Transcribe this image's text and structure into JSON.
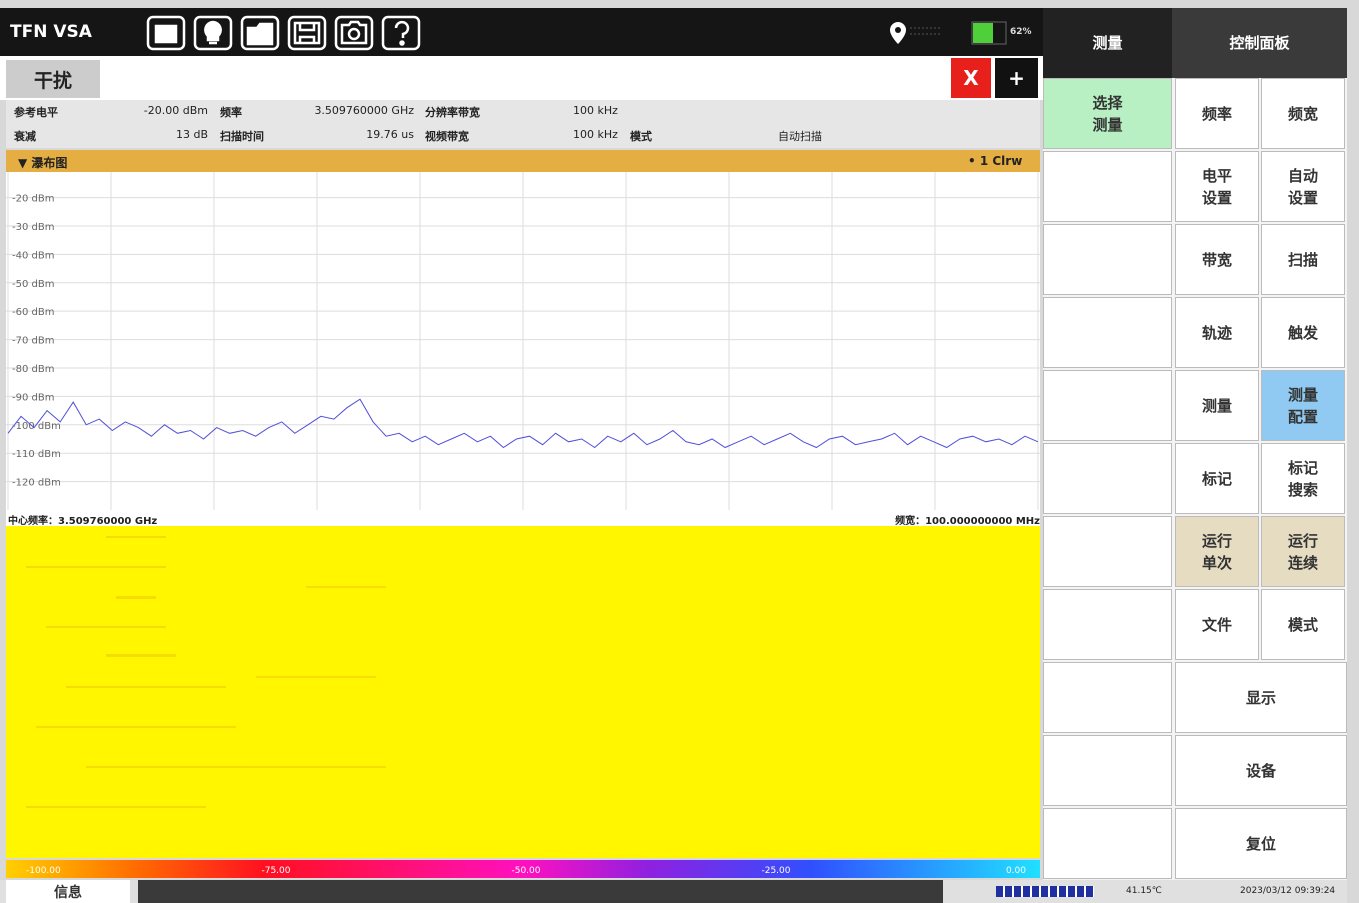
{
  "header": {
    "app_title": "TFN VSA",
    "battery": "62%"
  },
  "tab": {
    "label": "干扰",
    "close": "X",
    "add": "+"
  },
  "params": [
    [
      {
        "label": "参考电平",
        "value": "-20.00 dBm"
      },
      {
        "label": "频率",
        "value": "3.509760000 GHz"
      },
      {
        "label": "分辨率带宽",
        "value": "100 kHz"
      }
    ],
    [
      {
        "label": "衰减",
        "value": "13 dB"
      },
      {
        "label": "扫描时间",
        "value": "19.76 us"
      },
      {
        "label": "视频带宽",
        "value": "100 kHz"
      },
      {
        "label": "模式",
        "value": "自动扫描"
      }
    ]
  ],
  "panel": {
    "title": "▼ 瀑布图",
    "trace": "• 1 Clrw"
  },
  "spectrum": {
    "ylim": [
      -130,
      -11
    ],
    "yticks": [
      {
        "value": -20,
        "label": "-20 dBm"
      },
      {
        "value": -30,
        "label": "-30 dBm"
      },
      {
        "value": -40,
        "label": "-40 dBm"
      },
      {
        "value": -50,
        "label": "-50 dBm"
      },
      {
        "value": -60,
        "label": "-60 dBm"
      },
      {
        "value": -70,
        "label": "-70 dBm"
      },
      {
        "value": -80,
        "label": "-80 dBm"
      },
      {
        "value": -90,
        "label": "-90 dBm"
      },
      {
        "value": -100,
        "label": "-100 dBm"
      },
      {
        "value": -110,
        "label": "-110 dBm"
      },
      {
        "value": -120,
        "label": "-120 dBm"
      }
    ],
    "color": "#5050d8",
    "values": [
      -103,
      -97,
      -101,
      -95,
      -99,
      -92,
      -100,
      -98,
      -102,
      -99,
      -101,
      -104,
      -100,
      -103,
      -102,
      -105,
      -101,
      -103,
      -102,
      -104,
      -101,
      -99,
      -103,
      -100,
      -97,
      -98,
      -94,
      -91,
      -99,
      -104,
      -103,
      -106,
      -104,
      -107,
      -105,
      -103,
      -106,
      -104,
      -108,
      -105,
      -104,
      -107,
      -103,
      -106,
      -105,
      -108,
      -104,
      -106,
      -103,
      -107,
      -105,
      -102,
      -106,
      -107,
      -105,
      -108,
      -106,
      -104,
      -107,
      -105,
      -103,
      -106,
      -108,
      -105,
      -104,
      -107,
      -106,
      -105,
      -103,
      -107,
      -104,
      -106,
      -108,
      -105,
      -104,
      -106,
      -105,
      -107,
      -104,
      -106
    ]
  },
  "footer": {
    "center": "中心频率：3.509760000 GHz",
    "span": "频宽：100.000000000 MHz"
  },
  "colorbar": {
    "ticks": [
      "-100.00",
      "-75.00",
      "-50.00",
      "-25.00",
      "0.00"
    ]
  },
  "status": {
    "info": "信息",
    "temperature": "41.15℃",
    "datetime": "2023/03/12 09:39:24"
  },
  "sidebar": {
    "tabs": [
      "测量",
      "控制面板"
    ],
    "select": [
      "选择",
      "测量"
    ],
    "buttons": [
      [
        [
          "频率"
        ],
        [
          "频宽"
        ]
      ],
      [
        [
          "电平",
          "设置"
        ],
        [
          "自动",
          "设置"
        ]
      ],
      [
        [
          "带宽"
        ],
        [
          "扫描"
        ]
      ],
      [
        [
          "轨迹"
        ],
        [
          "触发"
        ]
      ],
      [
        [
          "测量"
        ],
        [
          "测量",
          "配置"
        ]
      ],
      [
        [
          "标记"
        ],
        [
          "标记",
          "搜索"
        ]
      ],
      [
        [
          "运行",
          "单次"
        ],
        [
          "运行",
          "连续"
        ]
      ],
      [
        [
          "文件"
        ],
        [
          "模式"
        ]
      ]
    ],
    "wide": [
      [
        "显示"
      ],
      [
        "设备"
      ],
      [
        "复位"
      ]
    ]
  }
}
